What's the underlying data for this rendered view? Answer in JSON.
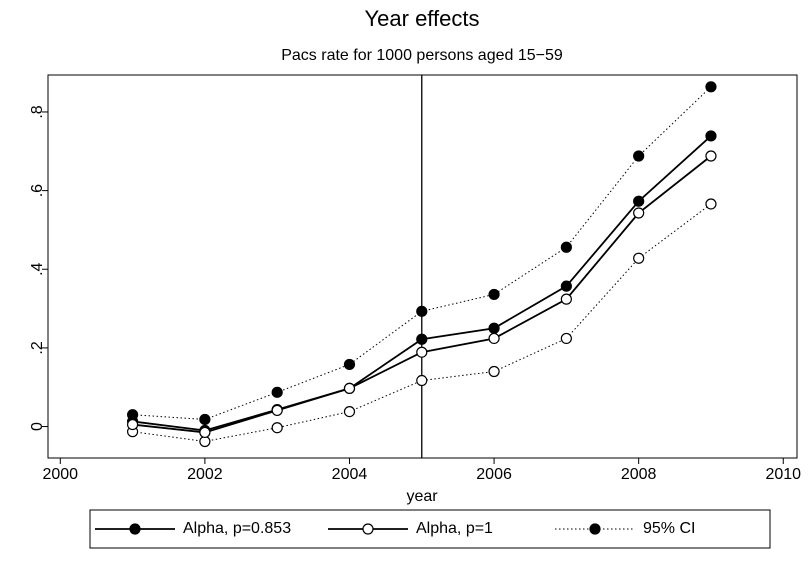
{
  "chart_data": {
    "type": "line",
    "title": "Year effects",
    "subtitle": "Pacs rate for 1000 persons aged 15−59",
    "x_label": "year",
    "x": [
      2001,
      2002,
      2003,
      2004,
      2005,
      2006,
      2007,
      2008,
      2009
    ],
    "series": [
      {
        "name": "Alpha, p=0.853",
        "color": "#000000",
        "marker": "filled",
        "linestyle": "solid",
        "values": [
          0.013,
          -0.01,
          0.043,
          0.097,
          0.222,
          0.25,
          0.357,
          0.573,
          0.739
        ]
      },
      {
        "name": "Alpha, p=1",
        "color": "#000000",
        "marker": "hollow",
        "linestyle": "solid",
        "values": [
          0.005,
          -0.015,
          0.041,
          0.097,
          0.189,
          0.224,
          0.324,
          0.543,
          0.688
        ]
      }
    ],
    "ci": {
      "name": "95% CI",
      "color": "#000000",
      "linestyle": "dotted",
      "upper": [
        0.03,
        0.018,
        0.087,
        0.158,
        0.293,
        0.336,
        0.456,
        0.688,
        0.864
      ],
      "lower": [
        -0.013,
        -0.038,
        -0.003,
        0.038,
        0.117,
        0.14,
        0.224,
        0.428,
        0.566
      ]
    },
    "vline": 2005,
    "xlim": [
      1999.83,
      2010.19
    ],
    "xticks": [
      2000,
      2002,
      2004,
      2006,
      2008,
      2010
    ],
    "ylim": [
      -0.08,
      0.894
    ],
    "yticks": [
      0,
      {
        "value": 0.2,
        "label": ".2"
      },
      {
        "value": 0.4,
        "label": ".4"
      },
      {
        "value": 0.6,
        "label": ".6"
      },
      {
        "value": 0.8,
        "label": ".8"
      }
    ],
    "legend": "bottom"
  }
}
